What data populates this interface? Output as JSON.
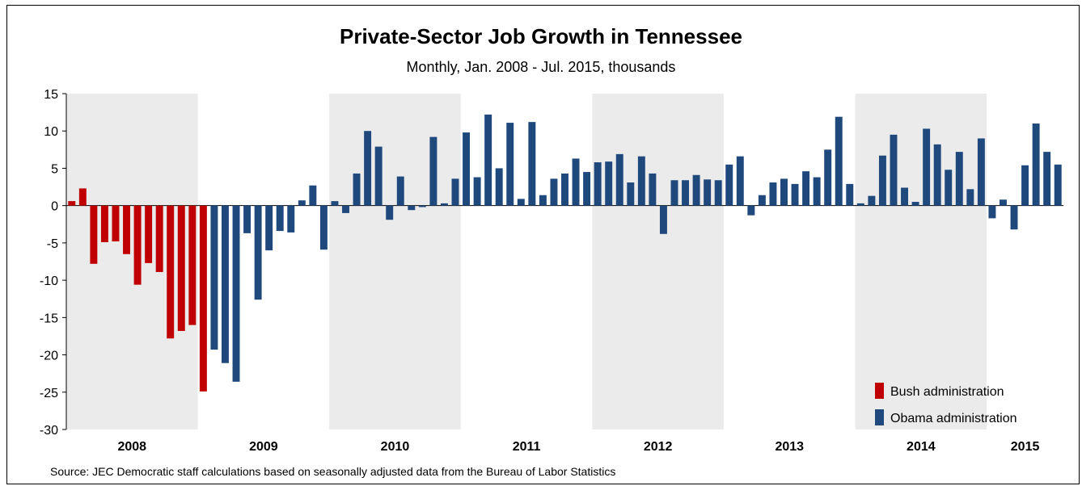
{
  "colors": {
    "bush": "#C00000",
    "obama": "#1F497D",
    "shade": "#EBEBEB"
  },
  "chart_data": {
    "type": "bar",
    "title": "Private-Sector Job Growth in Tennessee",
    "subtitle": "Monthly, Jan. 2008 - Jul. 2015, thousands",
    "source": "Source: JEC Democratic staff calculations based on seasonally adjusted data from the Bureau of Labor Statistics",
    "ylim": [
      -30,
      15
    ],
    "yticks": [
      15,
      10,
      5,
      0,
      -5,
      -10,
      -15,
      -20,
      -25,
      -30
    ],
    "year_labels": [
      "2008",
      "2009",
      "2010",
      "2011",
      "2012",
      "2013",
      "2014",
      "2015"
    ],
    "shaded_years": [
      "2008",
      "2010",
      "2012",
      "2014"
    ],
    "grid": false,
    "legend_position": "bottom-right",
    "series": [
      {
        "name": "Bush administration",
        "color": "#C00000",
        "start_index": 0,
        "values": [
          0.6,
          2.3,
          -7.8,
          -4.9,
          -4.8,
          -6.5,
          -10.6,
          -7.7,
          -8.9,
          -17.8,
          -16.8,
          -16.0,
          -24.9
        ]
      },
      {
        "name": "Obama administration",
        "color": "#1F497D",
        "start_index": 13,
        "values": [
          -19.3,
          -21.1,
          -23.6,
          -3.7,
          -12.6,
          -6.0,
          -3.4,
          -3.6,
          0.7,
          2.7,
          -5.9,
          0.6,
          -1.0,
          4.3,
          10.0,
          7.9,
          -1.9,
          3.9,
          -0.6,
          -0.2,
          9.2,
          0.3,
          3.6,
          9.8,
          3.8,
          12.2,
          5.0,
          11.1,
          0.9,
          11.2,
          1.4,
          3.6,
          4.3,
          6.3,
          4.5,
          5.8,
          5.9,
          6.9,
          3.1,
          6.6,
          4.3,
          -3.8,
          3.4,
          3.4,
          4.1,
          3.5,
          3.4,
          5.5,
          6.6,
          -1.3,
          1.4,
          3.1,
          3.6,
          2.9,
          4.6,
          3.8,
          7.5,
          11.9,
          2.9,
          0.3,
          1.3,
          6.7,
          9.5,
          2.4,
          0.5,
          10.3,
          8.2,
          4.8,
          7.2,
          2.2,
          9.0,
          -1.7,
          0.8,
          -3.2,
          5.4,
          11.0,
          7.2,
          5.5
        ]
      }
    ]
  }
}
